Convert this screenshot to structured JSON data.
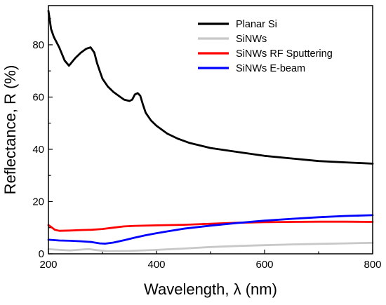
{
  "chart_data": {
    "type": "line",
    "xlabel": "Wavelength, λ (nm)",
    "ylabel": "Reflectance, R (%)",
    "xlim": [
      200,
      800
    ],
    "ylim": [
      0,
      95
    ],
    "x_ticks": [
      200,
      400,
      600,
      800
    ],
    "y_ticks": [
      0,
      20,
      40,
      60,
      80
    ],
    "grid": false,
    "legend_position": "top-right",
    "series": [
      {
        "name": "Planar Si",
        "color": "#000000",
        "points": [
          [
            200,
            93
          ],
          [
            205,
            86
          ],
          [
            210,
            83
          ],
          [
            220,
            79
          ],
          [
            230,
            74
          ],
          [
            238,
            72
          ],
          [
            250,
            75
          ],
          [
            260,
            77
          ],
          [
            270,
            78.5
          ],
          [
            278,
            79
          ],
          [
            285,
            77
          ],
          [
            290,
            73
          ],
          [
            295,
            70
          ],
          [
            300,
            67
          ],
          [
            310,
            64
          ],
          [
            320,
            62
          ],
          [
            330,
            60.5
          ],
          [
            340,
            59
          ],
          [
            350,
            58.5
          ],
          [
            355,
            59
          ],
          [
            360,
            61
          ],
          [
            365,
            61.5
          ],
          [
            370,
            60.5
          ],
          [
            375,
            57
          ],
          [
            380,
            54
          ],
          [
            390,
            51
          ],
          [
            400,
            49
          ],
          [
            420,
            46
          ],
          [
            440,
            44
          ],
          [
            460,
            42.5
          ],
          [
            480,
            41.5
          ],
          [
            500,
            40.5
          ],
          [
            550,
            39
          ],
          [
            600,
            37.5
          ],
          [
            650,
            36.5
          ],
          [
            700,
            35.5
          ],
          [
            750,
            35
          ],
          [
            800,
            34.5
          ]
        ]
      },
      {
        "name": "SiNWs",
        "color": "#c8c8c8",
        "points": [
          [
            200,
            1.8
          ],
          [
            220,
            1.5
          ],
          [
            240,
            1.3
          ],
          [
            260,
            1.6
          ],
          [
            275,
            1.8
          ],
          [
            290,
            1.4
          ],
          [
            310,
            1.0
          ],
          [
            350,
            1.1
          ],
          [
            400,
            1.5
          ],
          [
            450,
            2.0
          ],
          [
            500,
            2.6
          ],
          [
            550,
            3.0
          ],
          [
            600,
            3.3
          ],
          [
            650,
            3.6
          ],
          [
            700,
            3.8
          ],
          [
            750,
            4.0
          ],
          [
            800,
            4.2
          ]
        ]
      },
      {
        "name": "SiNWs RF Sputtering",
        "color": "#ff0000",
        "points": [
          [
            200,
            11
          ],
          [
            205,
            10.3
          ],
          [
            212,
            9.2
          ],
          [
            220,
            8.8
          ],
          [
            240,
            8.9
          ],
          [
            260,
            9.1
          ],
          [
            280,
            9.2
          ],
          [
            300,
            9.5
          ],
          [
            320,
            10
          ],
          [
            340,
            10.5
          ],
          [
            360,
            10.7
          ],
          [
            400,
            10.9
          ],
          [
            450,
            11.1
          ],
          [
            500,
            11.5
          ],
          [
            550,
            11.9
          ],
          [
            600,
            12.1
          ],
          [
            650,
            12.2
          ],
          [
            700,
            12.3
          ],
          [
            750,
            12.3
          ],
          [
            800,
            12.2
          ]
        ]
      },
      {
        "name": "SiNWs E-beam",
        "color": "#0000ff",
        "points": [
          [
            200,
            5.4
          ],
          [
            220,
            5.1
          ],
          [
            240,
            5.0
          ],
          [
            260,
            4.8
          ],
          [
            280,
            4.5
          ],
          [
            295,
            4.0
          ],
          [
            305,
            3.9
          ],
          [
            320,
            4.3
          ],
          [
            340,
            5.2
          ],
          [
            360,
            6.2
          ],
          [
            380,
            7.1
          ],
          [
            400,
            7.9
          ],
          [
            420,
            8.6
          ],
          [
            450,
            9.6
          ],
          [
            500,
            10.8
          ],
          [
            550,
            11.8
          ],
          [
            600,
            12.7
          ],
          [
            650,
            13.4
          ],
          [
            700,
            14.0
          ],
          [
            750,
            14.5
          ],
          [
            800,
            14.8
          ]
        ]
      }
    ]
  }
}
